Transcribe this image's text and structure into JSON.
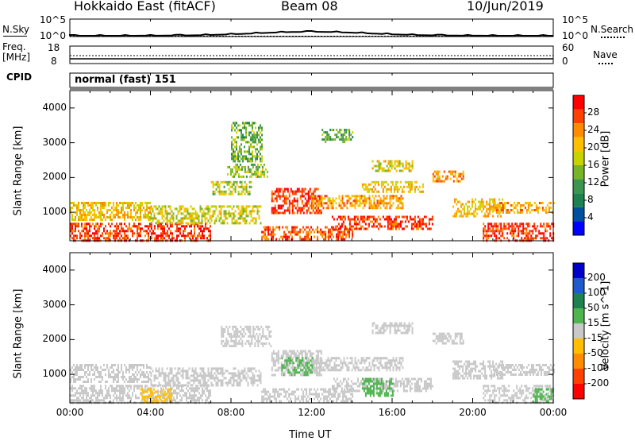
{
  "header": {
    "title": "Hokkaido East (fitACF)",
    "beam": "Beam 08",
    "date": "10/Jun/2019"
  },
  "sky_panel": {
    "left_label": "N.Sky",
    "left_ticks": [
      "10^5",
      "10^0"
    ],
    "right_ticks": [
      "10^5",
      "10^0"
    ],
    "right_label": "N.Search"
  },
  "freq_panel": {
    "left_label_1": "Freq.",
    "left_label_2": "[MHz]",
    "left_ticks": [
      "18",
      "8"
    ],
    "right_ticks": [
      "60",
      "0"
    ],
    "right_label": "Nave"
  },
  "cpid": {
    "label": "CPID",
    "mode": "normal (fast) 151"
  },
  "chart_data": [
    {
      "type": "heatmap",
      "name": "power",
      "ylabel": "Slant Range [km]",
      "xlabel": "",
      "ylim": [
        180,
        4500
      ],
      "xlim_hours": [
        0,
        24
      ],
      "yticks": [
        "1000",
        "2000",
        "3000",
        "4000"
      ],
      "colorbar": {
        "label": "Power [dB]",
        "ticks": [
          "28",
          "24",
          "20",
          "16",
          "12",
          "8",
          "4"
        ],
        "colors": [
          "#ff0000",
          "#ff4000",
          "#ff8c00",
          "#ffbf00",
          "#c8d200",
          "#78b428",
          "#3c9650",
          "#1e8250",
          "#0050a0",
          "#0000ff"
        ]
      },
      "echo_regions": [
        {
          "t0": 0.0,
          "t1": 7.0,
          "r0": 200,
          "r1": 700,
          "v": 28
        },
        {
          "t0": 0.0,
          "t1": 4.0,
          "r0": 800,
          "r1": 1300,
          "v": 20
        },
        {
          "t0": 4.0,
          "t1": 9.5,
          "r0": 700,
          "r1": 1200,
          "v": 17
        },
        {
          "t0": 7.0,
          "t1": 9.0,
          "r0": 1500,
          "r1": 1900,
          "v": 16
        },
        {
          "t0": 7.8,
          "t1": 9.8,
          "r0": 2000,
          "r1": 2400,
          "v": 14
        },
        {
          "t0": 8.0,
          "t1": 9.5,
          "r0": 2500,
          "r1": 3600,
          "v": 12
        },
        {
          "t0": 9.5,
          "t1": 14.0,
          "r0": 200,
          "r1": 600,
          "v": 26
        },
        {
          "t0": 10.0,
          "t1": 12.5,
          "r0": 1000,
          "r1": 1700,
          "v": 28
        },
        {
          "t0": 12.0,
          "t1": 16.5,
          "r0": 1100,
          "r1": 1500,
          "v": 22
        },
        {
          "t0": 13.0,
          "t1": 18.0,
          "r0": 500,
          "r1": 900,
          "v": 28
        },
        {
          "t0": 14.5,
          "t1": 17.5,
          "r0": 1600,
          "r1": 1900,
          "v": 20
        },
        {
          "t0": 15.0,
          "t1": 17.0,
          "r0": 2200,
          "r1": 2500,
          "v": 18
        },
        {
          "t0": 18.0,
          "t1": 19.5,
          "r0": 1900,
          "r1": 2200,
          "v": 22
        },
        {
          "t0": 19.0,
          "t1": 21.5,
          "r0": 900,
          "r1": 1400,
          "v": 20
        },
        {
          "t0": 21.0,
          "t1": 24.0,
          "r0": 1000,
          "r1": 1300,
          "v": 22
        },
        {
          "t0": 20.5,
          "t1": 24.0,
          "r0": 200,
          "r1": 700,
          "v": 28
        },
        {
          "t0": 12.5,
          "t1": 14.0,
          "r0": 3000,
          "r1": 3400,
          "v": 12
        }
      ]
    },
    {
      "type": "heatmap",
      "name": "velocity",
      "ylabel": "Slant Range [km]",
      "xlabel": "Time UT",
      "ylim": [
        180,
        4500
      ],
      "xlim_hours": [
        0,
        24
      ],
      "yticks": [
        "1000",
        "2000",
        "3000",
        "4000"
      ],
      "xticks": [
        "00:00",
        "04:00",
        "08:00",
        "12:00",
        "16:00",
        "20:00",
        "00:00"
      ],
      "colorbar": {
        "label": "Velocity [m s^-1]",
        "ticks": [
          "200",
          "100",
          "50",
          "15",
          "-15",
          "-50",
          "-100",
          "-200"
        ],
        "colors": [
          "#0000c8",
          "#1e5ac8",
          "#1e8250",
          "#50b450",
          "#c8c8c8",
          "#ffbf00",
          "#ff8c00",
          "#ff4000",
          "#ff0000"
        ]
      },
      "echo_regions": [
        {
          "t0": 0.0,
          "t1": 7.0,
          "r0": 200,
          "r1": 700,
          "v": 0
        },
        {
          "t0": 0.0,
          "t1": 4.0,
          "r0": 800,
          "r1": 1300,
          "v": 0
        },
        {
          "t0": 3.5,
          "t1": 5.0,
          "r0": 200,
          "r1": 600,
          "v": -40
        },
        {
          "t0": 4.0,
          "t1": 9.5,
          "r0": 700,
          "r1": 1200,
          "v": 0
        },
        {
          "t0": 7.5,
          "t1": 10.0,
          "r0": 1800,
          "r1": 2400,
          "v": 0
        },
        {
          "t0": 9.5,
          "t1": 14.0,
          "r0": 200,
          "r1": 600,
          "v": 0
        },
        {
          "t0": 10.0,
          "t1": 12.5,
          "r0": 1000,
          "r1": 1700,
          "v": 0
        },
        {
          "t0": 10.5,
          "t1": 12.0,
          "r0": 1000,
          "r1": 1500,
          "v": 40
        },
        {
          "t0": 12.0,
          "t1": 16.5,
          "r0": 1100,
          "r1": 1500,
          "v": 0
        },
        {
          "t0": 13.0,
          "t1": 18.0,
          "r0": 500,
          "r1": 900,
          "v": 0
        },
        {
          "t0": 14.5,
          "t1": 16.0,
          "r0": 400,
          "r1": 900,
          "v": 30
        },
        {
          "t0": 15.0,
          "t1": 17.0,
          "r0": 2200,
          "r1": 2500,
          "v": 0
        },
        {
          "t0": 18.0,
          "t1": 19.5,
          "r0": 1900,
          "r1": 2200,
          "v": 0
        },
        {
          "t0": 19.0,
          "t1": 21.5,
          "r0": 900,
          "r1": 1400,
          "v": 0
        },
        {
          "t0": 21.0,
          "t1": 24.0,
          "r0": 1000,
          "r1": 1300,
          "v": 0
        },
        {
          "t0": 20.5,
          "t1": 24.0,
          "r0": 200,
          "r1": 700,
          "v": 0
        },
        {
          "t0": 23.0,
          "t1": 24.0,
          "r0": 200,
          "r1": 600,
          "v": 40
        }
      ]
    }
  ]
}
